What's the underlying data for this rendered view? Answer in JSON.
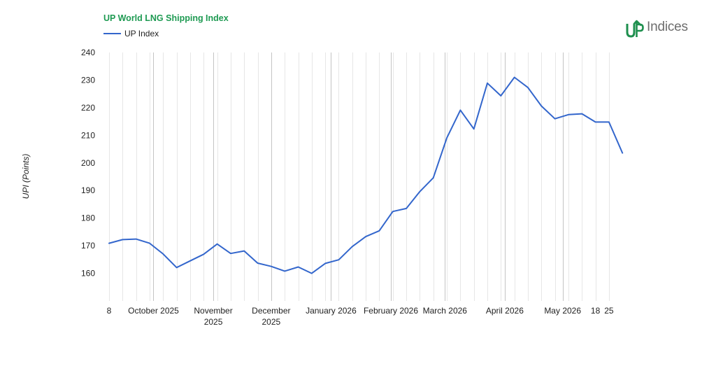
{
  "brand": {
    "logo_text": "Indices",
    "logo_mark": "UP",
    "accent_color": "#1e8f4e",
    "logo_gray": "#6d6d6d"
  },
  "chart_data": {
    "type": "line",
    "title": "UP World LNG Shipping Index",
    "title_color": "#1e9a52",
    "ylabel": "UPI (Points)",
    "xlabel": "",
    "ylim": [
      150,
      240
    ],
    "yticks": [
      160,
      170,
      180,
      190,
      200,
      210,
      220,
      230,
      240
    ],
    "grid": true,
    "legend_position": "top-left",
    "x_tick_labels": [
      {
        "label": [
          "8"
        ],
        "date": "2025-09-08"
      },
      {
        "label": [
          "October 2025"
        ],
        "date": "2025-10-01"
      },
      {
        "label": [
          "November",
          "2025"
        ],
        "date": "2025-11-01"
      },
      {
        "label": [
          "December",
          "2025"
        ],
        "date": "2025-12-01"
      },
      {
        "label": [
          "January 2026"
        ],
        "date": "2026-01-01"
      },
      {
        "label": [
          "February 2026"
        ],
        "date": "2026-02-01"
      },
      {
        "label": [
          "March 2026"
        ],
        "date": "2026-03-01"
      },
      {
        "label": [
          "April 2026"
        ],
        "date": "2026-04-01"
      },
      {
        "label": [
          "May 2026"
        ],
        "date": "2026-05-01"
      },
      {
        "label": [
          "18"
        ],
        "date": "2026-05-18"
      },
      {
        "label": [
          "25"
        ],
        "date": "2026-05-25"
      }
    ],
    "month_boundaries": [
      "2025-10-01",
      "2025-11-01",
      "2025-12-01",
      "2026-01-01",
      "2026-02-01",
      "2026-03-01",
      "2026-04-01",
      "2026-05-01"
    ],
    "week_gridlines": [
      "2025-09-08",
      "2025-09-15",
      "2025-09-22",
      "2025-09-29",
      "2025-10-06",
      "2025-10-13",
      "2025-10-20",
      "2025-10-27",
      "2025-11-03",
      "2025-11-10",
      "2025-11-17",
      "2025-11-24",
      "2025-12-01",
      "2025-12-08",
      "2025-12-15",
      "2025-12-22",
      "2025-12-29",
      "2026-01-05",
      "2026-01-12",
      "2026-01-19",
      "2026-01-26",
      "2026-02-02",
      "2026-02-09",
      "2026-02-16",
      "2026-02-23",
      "2026-03-02",
      "2026-03-09",
      "2026-03-16",
      "2026-03-23",
      "2026-03-30",
      "2026-04-06",
      "2026-04-13",
      "2026-04-20",
      "2026-04-27",
      "2026-05-04",
      "2026-05-11",
      "2026-05-18",
      "2026-05-25"
    ],
    "x_range": [
      "2025-09-08",
      "2026-06-02"
    ],
    "series": [
      {
        "name": "UP Index",
        "color": "#3366cc",
        "points": [
          {
            "x": "2025-09-08",
            "y": 170.9
          },
          {
            "x": "2025-09-15",
            "y": 172.2
          },
          {
            "x": "2025-09-22",
            "y": 172.4
          },
          {
            "x": "2025-09-29",
            "y": 170.9
          },
          {
            "x": "2025-10-06",
            "y": 167.0
          },
          {
            "x": "2025-10-13",
            "y": 162.1
          },
          {
            "x": "2025-10-20",
            "y": 164.5
          },
          {
            "x": "2025-10-27",
            "y": 166.9
          },
          {
            "x": "2025-11-03",
            "y": 170.6
          },
          {
            "x": "2025-11-10",
            "y": 167.2
          },
          {
            "x": "2025-11-17",
            "y": 168.1
          },
          {
            "x": "2025-11-24",
            "y": 163.7
          },
          {
            "x": "2025-12-01",
            "y": 162.5
          },
          {
            "x": "2025-12-08",
            "y": 160.8
          },
          {
            "x": "2025-12-15",
            "y": 162.3
          },
          {
            "x": "2025-12-22",
            "y": 160.0
          },
          {
            "x": "2025-12-29",
            "y": 163.6
          },
          {
            "x": "2026-01-05",
            "y": 164.9
          },
          {
            "x": "2026-01-12",
            "y": 169.7
          },
          {
            "x": "2026-01-19",
            "y": 173.3
          },
          {
            "x": "2026-01-26",
            "y": 175.4
          },
          {
            "x": "2026-02-02",
            "y": 182.4
          },
          {
            "x": "2026-02-09",
            "y": 183.5
          },
          {
            "x": "2026-02-16",
            "y": 189.6
          },
          {
            "x": "2026-02-23",
            "y": 194.6
          },
          {
            "x": "2026-03-02",
            "y": 209.1
          },
          {
            "x": "2026-03-09",
            "y": 219.1
          },
          {
            "x": "2026-03-16",
            "y": 212.3
          },
          {
            "x": "2026-03-23",
            "y": 228.9
          },
          {
            "x": "2026-03-30",
            "y": 224.3
          },
          {
            "x": "2026-04-06",
            "y": 231.0
          },
          {
            "x": "2026-04-13",
            "y": 227.3
          },
          {
            "x": "2026-04-20",
            "y": 220.6
          },
          {
            "x": "2026-04-27",
            "y": 216.0
          },
          {
            "x": "2026-05-04",
            "y": 217.5
          },
          {
            "x": "2026-05-11",
            "y": 217.8
          },
          {
            "x": "2026-05-18",
            "y": 214.8
          },
          {
            "x": "2026-05-25",
            "y": 214.8
          },
          {
            "x": "2026-06-01",
            "y": 203.6
          }
        ]
      }
    ]
  }
}
